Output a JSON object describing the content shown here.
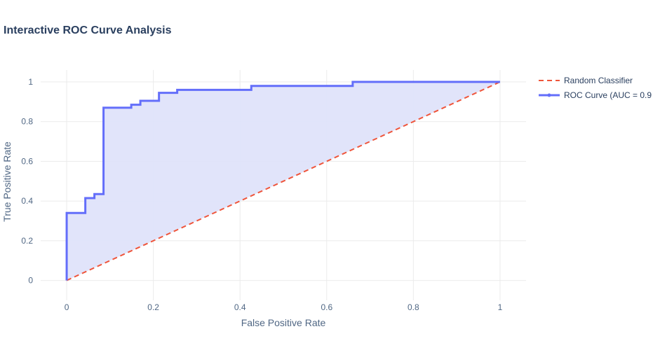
{
  "chart_data": {
    "type": "line",
    "title": "Interactive ROC Curve Analysis",
    "xlabel": "False Positive Rate",
    "ylabel": "True Positive Rate",
    "xlim": [
      -0.06,
      1.06
    ],
    "ylim": [
      -0.1,
      1.06
    ],
    "xticks": [
      "0",
      "0.2",
      "0.4",
      "0.6",
      "0.8",
      "1"
    ],
    "yticks": [
      "0",
      "0.2",
      "0.4",
      "0.6",
      "0.8",
      "1"
    ],
    "grid": true,
    "legend_position": "top-right",
    "series": [
      {
        "name": "Random Classifier",
        "style": "dashed",
        "color": "#ef553b",
        "x": [
          0,
          1
        ],
        "y": [
          0,
          1
        ]
      },
      {
        "name": "ROC Curve (AUC = 0.9",
        "style": "solid",
        "color": "#636efa",
        "fill": "#dfe3fa",
        "x": [
          0,
          0,
          0.043,
          0.043,
          0.064,
          0.064,
          0.085,
          0.085,
          0.149,
          0.149,
          0.17,
          0.17,
          0.213,
          0.213,
          0.255,
          0.255,
          0.426,
          0.426,
          0.66,
          0.66,
          1
        ],
        "y": [
          0,
          0.34,
          0.34,
          0.415,
          0.415,
          0.435,
          0.435,
          0.87,
          0.87,
          0.885,
          0.885,
          0.905,
          0.905,
          0.945,
          0.945,
          0.96,
          0.96,
          0.98,
          0.98,
          1,
          1
        ]
      }
    ]
  }
}
